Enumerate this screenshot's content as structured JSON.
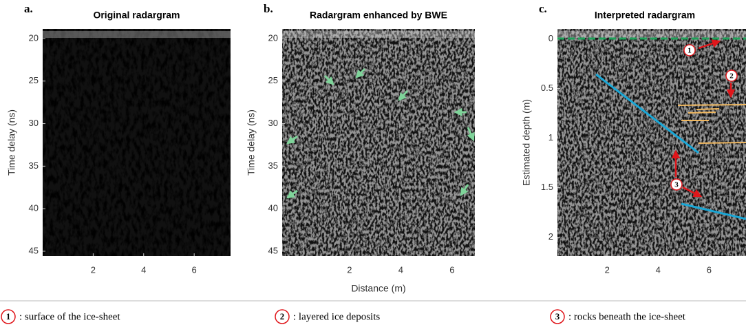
{
  "panels": [
    {
      "letter": "a.",
      "title": "Original radargram",
      "ylabel": "Time delay (ns)",
      "xlim": [
        0,
        7.44
      ],
      "ylim": [
        18.87,
        45.57
      ],
      "xticks": [
        2,
        4,
        6
      ],
      "yticks": [
        20,
        25,
        30,
        35,
        40,
        45
      ]
    },
    {
      "letter": "b.",
      "title": "Radargram enhanced by BWE",
      "ylabel": "Time delay (ns)",
      "xlabel": "Distance (m)",
      "xlim": [
        -0.63,
        6.89
      ],
      "ylim": [
        18.87,
        45.57
      ],
      "xticks": [
        2,
        4,
        6
      ],
      "yticks": [
        20,
        25,
        30,
        35,
        40,
        45
      ]
    },
    {
      "letter": "c.",
      "title": "Interpreted radargram",
      "ylabel": "Estimated depth (m)",
      "xlim": [
        0.05,
        7.45
      ],
      "ylim": [
        -0.1,
        2.19
      ],
      "xticks": [
        2,
        4,
        6
      ],
      "yticks": [
        0,
        0.5,
        1,
        1.5,
        2
      ]
    }
  ],
  "legend": [
    {
      "number": "1",
      "text": ": surface of the ice-sheet"
    },
    {
      "number": "2",
      "text": ": layered ice deposits"
    },
    {
      "number": "3",
      "text": ": rocks beneath the ice-sheet"
    }
  ]
}
